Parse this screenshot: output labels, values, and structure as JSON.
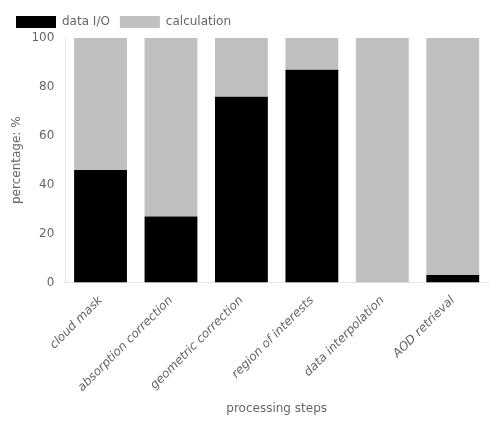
{
  "chart_data": {
    "type": "bar",
    "stacked": true,
    "categories": [
      "cloud mask",
      "absorption correction",
      "geometric correction",
      "region of interests",
      "data interpolation",
      "AOD retrieval"
    ],
    "series": [
      {
        "name": "data I/O",
        "color": "#000000",
        "values": [
          46,
          27,
          76,
          87,
          0,
          3
        ]
      },
      {
        "name": "calculation",
        "color": "#c0c0c0",
        "values": [
          54,
          73,
          24,
          13,
          100,
          97
        ]
      }
    ],
    "xlabel": "processing steps",
    "ylabel": "percentage: %",
    "ylim": [
      0,
      100
    ],
    "yticks": [
      0,
      20,
      40,
      60,
      80,
      100
    ],
    "grid": false,
    "legend": "upper left"
  }
}
